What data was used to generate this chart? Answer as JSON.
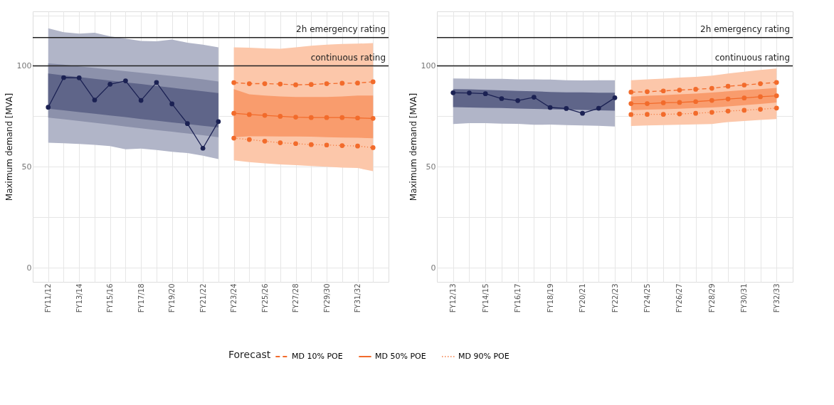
{
  "chart_data": [
    {
      "type": "line",
      "ylabel": "Maximum demand [MVA]",
      "legend_title": "Forecast",
      "legend": "bottom",
      "grid": true,
      "marker": "circle",
      "categories": [
        "FY11/12",
        null,
        "FY13/14",
        null,
        "FY15/16",
        null,
        "FY17/18",
        null,
        "FY19/20",
        null,
        "FY21/22",
        null,
        "FY23/24",
        null,
        "FY25/26",
        null,
        "FY27/28",
        null,
        "FY29/30",
        null,
        "FY31/32",
        null
      ],
      "ylim": [
        -7,
        127
      ],
      "yticks": [
        0,
        {
          "value": 25,
          "label": null
        },
        50,
        {
          "value": 75,
          "label": null
        },
        100,
        {
          "value": 125,
          "label": null
        }
      ],
      "ref_lines": [
        {
          "axis": "y",
          "value": 114,
          "label": "2h emergency rating",
          "color": "#222222"
        },
        {
          "axis": "y",
          "value": 100,
          "label": "continuous rating",
          "color": "#222222"
        }
      ],
      "series": [
        {
          "type": "area",
          "color": "#b1b5c8",
          "values": [
            null,
            null,
            null,
            null,
            null,
            null,
            null,
            null,
            null,
            null,
            null,
            null,
            null,
            null,
            null,
            null,
            null,
            null,
            null,
            null,
            null,
            null
          ],
          "lower": [
            61.9,
            61.7,
            61.3,
            60.9,
            60.3,
            58.7,
            59.0,
            58.3,
            57.4,
            56.8,
            55.5,
            53.8,
            null,
            null,
            null,
            null,
            null,
            null,
            null,
            null,
            null,
            null
          ],
          "upper": [
            118.6,
            116.7,
            116.0,
            116.4,
            114.7,
            113.5,
            112.4,
            112.2,
            113.1,
            111.5,
            110.5,
            109.2,
            null,
            null,
            null,
            null,
            null,
            null,
            null,
            null,
            null,
            null
          ]
        },
        {
          "type": "area",
          "color": "#8c91ab",
          "values": [
            null,
            null,
            null,
            null,
            null,
            null,
            null,
            null,
            null,
            null,
            null,
            null,
            null,
            null,
            null,
            null,
            null,
            null,
            null,
            null,
            null,
            null
          ],
          "lower": [
            74.4,
            73.6,
            72.7,
            71.8,
            70.9,
            70.0,
            69.1,
            68.2,
            67.4,
            66.5,
            65.6,
            64.7,
            null,
            null,
            null,
            null,
            null,
            null,
            null,
            null,
            null,
            null
          ],
          "upper": [
            101.3,
            100.6,
            99.8,
            99.0,
            98.2,
            97.4,
            96.6,
            95.8,
            95.0,
            94.2,
            93.3,
            92.3,
            null,
            null,
            null,
            null,
            null,
            null,
            null,
            null,
            null,
            null
          ]
        },
        {
          "type": "area",
          "color": "#5f6589",
          "values": [
            null,
            null,
            null,
            null,
            null,
            null,
            null,
            null,
            null,
            null,
            null,
            null,
            null,
            null,
            null,
            null,
            null,
            null,
            null,
            null,
            null,
            null
          ],
          "lower": [
            78.8,
            78.0,
            77.1,
            76.3,
            75.4,
            74.6,
            73.7,
            72.9,
            72.0,
            71.2,
            70.3,
            69.5,
            null,
            null,
            null,
            null,
            null,
            null,
            null,
            null,
            null,
            null
          ],
          "upper": [
            96.2,
            95.3,
            94.5,
            93.6,
            92.7,
            91.8,
            91.0,
            90.1,
            89.2,
            88.3,
            87.4,
            86.5,
            null,
            null,
            null,
            null,
            null,
            null,
            null,
            null,
            null,
            null
          ]
        },
        {
          "type": "area",
          "color": "#fcc7aa",
          "values": [
            null,
            null,
            null,
            null,
            null,
            null,
            null,
            null,
            null,
            null,
            null,
            null,
            null,
            null,
            null,
            null,
            null,
            null,
            null,
            null,
            null,
            null
          ],
          "lower": [
            null,
            null,
            null,
            null,
            null,
            null,
            null,
            null,
            null,
            null,
            null,
            null,
            53.2,
            52.3,
            51.7,
            51.2,
            50.8,
            50.4,
            50.0,
            49.6,
            49.4,
            47.8
          ],
          "upper": [
            null,
            null,
            null,
            null,
            null,
            null,
            null,
            null,
            null,
            null,
            null,
            null,
            109.2,
            109.0,
            108.7,
            108.5,
            109.2,
            110.0,
            110.5,
            110.9,
            111.0,
            111.3
          ]
        },
        {
          "type": "area",
          "color": "#f99c6d",
          "values": [
            null,
            null,
            null,
            null,
            null,
            null,
            null,
            null,
            null,
            null,
            null,
            null,
            null,
            null,
            null,
            null,
            null,
            null,
            null,
            null,
            null,
            null
          ],
          "lower": [
            null,
            null,
            null,
            null,
            null,
            null,
            null,
            null,
            null,
            null,
            null,
            null,
            64.7,
            65.1,
            65.1,
            65.0,
            65.0,
            64.9,
            64.7,
            64.5,
            64.4,
            64.1
          ],
          "upper": [
            null,
            null,
            null,
            null,
            null,
            null,
            null,
            null,
            null,
            null,
            null,
            null,
            88.5,
            85.9,
            85.3,
            84.9,
            84.6,
            84.6,
            84.6,
            84.9,
            85.3,
            85.3
          ]
        },
        {
          "type": "line",
          "color": "#1b2153",
          "line_style": "solid",
          "values": [
            79.5,
            94.2,
            94.1,
            83.1,
            90.9,
            92.6,
            82.9,
            91.8,
            81.2,
            71.4,
            59.2,
            72.4,
            null,
            null,
            null,
            null,
            null,
            null,
            null,
            null,
            null,
            null
          ]
        },
        {
          "type": "line",
          "name": "MD 10% POE",
          "color": "#f26b2b",
          "line_style": "dashed",
          "values": [
            null,
            null,
            null,
            null,
            null,
            null,
            null,
            null,
            null,
            null,
            null,
            null,
            91.7,
            91.2,
            91.2,
            91.0,
            90.6,
            90.8,
            91.2,
            91.4,
            91.5,
            92.1
          ]
        },
        {
          "type": "line",
          "name": "MD 50% POE",
          "color": "#f26b2b",
          "line_style": "solid",
          "values": [
            null,
            null,
            null,
            null,
            null,
            null,
            null,
            null,
            null,
            null,
            null,
            null,
            76.5,
            75.9,
            75.5,
            75.0,
            74.6,
            74.4,
            74.4,
            74.4,
            74.2,
            74.0
          ]
        },
        {
          "type": "line",
          "name": "MD 90% POE",
          "color": "#f26b2b",
          "line_style": "dotted",
          "values": [
            null,
            null,
            null,
            null,
            null,
            null,
            null,
            null,
            null,
            null,
            null,
            null,
            64.2,
            63.5,
            62.7,
            61.9,
            61.5,
            61.0,
            60.8,
            60.5,
            60.3,
            59.5
          ]
        }
      ]
    },
    {
      "type": "line",
      "ylabel": "Maximum demand [MVA]",
      "grid": true,
      "marker": "circle",
      "categories": [
        "FY12/13",
        null,
        "FY14/15",
        null,
        "FY16/17",
        null,
        "FY18/19",
        null,
        "FY20/21",
        null,
        "FY22/23",
        null,
        "FY24/25",
        null,
        "FY26/27",
        null,
        "FY28/29",
        null,
        "FY30/31",
        null,
        "FY32/33"
      ],
      "ylim": [
        -7,
        127
      ],
      "yticks": [
        0,
        {
          "value": 25,
          "label": null
        },
        50,
        {
          "value": 75,
          "label": null
        },
        100,
        {
          "value": 125,
          "label": null
        }
      ],
      "ref_lines": [
        {
          "axis": "y",
          "value": 114,
          "label": "2h emergency rating",
          "color": "#222222"
        },
        {
          "axis": "y",
          "value": 100,
          "label": "continuous rating",
          "color": "#222222"
        }
      ],
      "series": [
        {
          "type": "area",
          "color": "#b1b5c8",
          "values": [
            null,
            null,
            null,
            null,
            null,
            null,
            null,
            null,
            null,
            null,
            null,
            null,
            null,
            null,
            null,
            null,
            null,
            null,
            null,
            null,
            null
          ],
          "lower": [
            71.2,
            71.6,
            71.6,
            71.4,
            71.3,
            70.8,
            70.9,
            70.7,
            70.5,
            70.3,
            70.0,
            null,
            null,
            null,
            null,
            null,
            null,
            null,
            null,
            null,
            null
          ],
          "upper": [
            93.8,
            93.7,
            93.6,
            93.6,
            93.3,
            93.3,
            93.2,
            92.9,
            92.8,
            92.9,
            92.9,
            null,
            null,
            null,
            null,
            null,
            null,
            null,
            null,
            null,
            null
          ]
        },
        {
          "type": "area",
          "color": "#5f6589",
          "values": [
            null,
            null,
            null,
            null,
            null,
            null,
            null,
            null,
            null,
            null,
            null,
            null,
            null,
            null,
            null,
            null,
            null,
            null,
            null,
            null,
            null
          ],
          "lower": [
            79.6,
            79.4,
            79.2,
            79.1,
            78.9,
            78.7,
            78.5,
            78.3,
            78.2,
            78.0,
            77.8,
            null,
            null,
            null,
            null,
            null,
            null,
            null,
            null,
            null,
            null
          ],
          "upper": [
            88.5,
            88.4,
            88.1,
            87.9,
            87.6,
            87.4,
            87.1,
            86.9,
            86.9,
            86.7,
            86.7,
            null,
            null,
            null,
            null,
            null,
            null,
            null,
            null,
            null,
            null
          ]
        },
        {
          "type": "area",
          "color": "#fcc7aa",
          "values": [
            null,
            null,
            null,
            null,
            null,
            null,
            null,
            null,
            null,
            null,
            null,
            null,
            null,
            null,
            null,
            null,
            null,
            null,
            null,
            null,
            null
          ],
          "lower": [
            null,
            null,
            null,
            null,
            null,
            null,
            null,
            null,
            null,
            null,
            null,
            70.2,
            70.5,
            70.7,
            70.8,
            71.0,
            71.2,
            72.2,
            72.7,
            73.2,
            73.7
          ],
          "upper": [
            null,
            null,
            null,
            null,
            null,
            null,
            null,
            null,
            null,
            null,
            null,
            92.9,
            93.3,
            93.7,
            94.2,
            94.6,
            95.2,
            96.2,
            97.1,
            98.0,
            98.7
          ]
        },
        {
          "type": "area",
          "color": "#f99c6d",
          "values": [
            null,
            null,
            null,
            null,
            null,
            null,
            null,
            null,
            null,
            null,
            null,
            null,
            null,
            null,
            null,
            null,
            null,
            null,
            null,
            null,
            null
          ],
          "lower": [
            null,
            null,
            null,
            null,
            null,
            null,
            null,
            null,
            null,
            null,
            null,
            78.1,
            78.3,
            78.5,
            78.8,
            79.1,
            79.4,
            79.9,
            80.5,
            81.2,
            81.9
          ],
          "upper": [
            null,
            null,
            null,
            null,
            null,
            null,
            null,
            null,
            null,
            null,
            null,
            84.8,
            85.2,
            85.5,
            85.9,
            86.3,
            86.8,
            87.4,
            88.0,
            88.5,
            89.1
          ]
        },
        {
          "type": "line",
          "color": "#1b2153",
          "line_style": "solid",
          "values": [
            86.7,
            86.6,
            86.2,
            83.8,
            82.8,
            84.5,
            79.4,
            78.9,
            76.5,
            79.0,
            84.2,
            null,
            null,
            null,
            null,
            null,
            null,
            null,
            null,
            null,
            null
          ]
        },
        {
          "type": "line",
          "name": "MD 10% POE",
          "color": "#f26b2b",
          "line_style": "dashed",
          "values": [
            null,
            null,
            null,
            null,
            null,
            null,
            null,
            null,
            null,
            null,
            null,
            87.0,
            87.2,
            87.6,
            88.0,
            88.4,
            88.9,
            89.9,
            90.5,
            91.2,
            91.8
          ]
        },
        {
          "type": "line",
          "name": "MD 50% POE",
          "color": "#f26b2b",
          "line_style": "solid",
          "values": [
            null,
            null,
            null,
            null,
            null,
            null,
            null,
            null,
            null,
            null,
            null,
            81.3,
            81.3,
            81.7,
            81.9,
            82.3,
            82.9,
            83.6,
            84.1,
            84.7,
            85.2
          ]
        },
        {
          "type": "line",
          "name": "MD 90% POE",
          "color": "#f26b2b",
          "line_style": "dotted",
          "values": [
            null,
            null,
            null,
            null,
            null,
            null,
            null,
            null,
            null,
            null,
            null,
            75.9,
            76.0,
            76.0,
            76.2,
            76.5,
            77.0,
            77.6,
            78.0,
            78.5,
            79.1
          ]
        }
      ]
    }
  ]
}
